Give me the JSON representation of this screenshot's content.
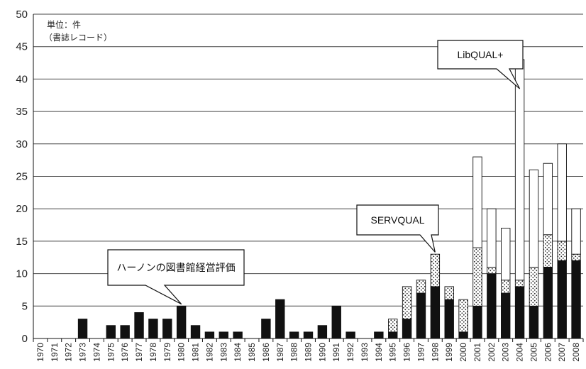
{
  "chart_data": {
    "type": "bar",
    "stacked": true,
    "title": "",
    "xlabel": "",
    "ylabel": "",
    "ylim": [
      0,
      50
    ],
    "yticks": [
      0,
      5,
      10,
      15,
      20,
      25,
      30,
      35,
      40,
      45,
      50
    ],
    "grid": true,
    "unit_label": [
      "単位：件",
      "（書誌レコード）"
    ],
    "categories": [
      "1970",
      "1971",
      "1972",
      "1973",
      "1974",
      "1975",
      "1976",
      "1977",
      "1978",
      "1979",
      "1980",
      "1981",
      "1982",
      "1983",
      "1984",
      "1985",
      "1986",
      "1987",
      "1988",
      "1989",
      "1990",
      "1991",
      "1992",
      "1993",
      "1994",
      "1995",
      "1996",
      "1997",
      "1998",
      "1999",
      "2000",
      "2001",
      "2002",
      "2003",
      "2004",
      "2005",
      "2006",
      "2007",
      "2008"
    ],
    "series": [
      {
        "pattern": "solid",
        "color": "#111111",
        "values": [
          0,
          0,
          0,
          3,
          0,
          2,
          2,
          4,
          3,
          3,
          5,
          2,
          1,
          1,
          1,
          0,
          3,
          6,
          1,
          1,
          2,
          5,
          1,
          0,
          1,
          1,
          3,
          7,
          8,
          6,
          1,
          5,
          10,
          7,
          8,
          5,
          11,
          12,
          12
        ]
      },
      {
        "pattern": "dotted",
        "color": "#ffffff",
        "values": [
          0,
          0,
          0,
          0,
          0,
          0,
          0,
          0,
          0,
          0,
          0,
          0,
          0,
          0,
          0,
          0,
          0,
          0,
          0,
          0,
          0,
          0,
          0,
          0,
          0,
          2,
          5,
          2,
          5,
          2,
          5,
          9,
          1,
          2,
          1,
          6,
          5,
          3,
          1
        ]
      },
      {
        "pattern": "white",
        "color": "#ffffff",
        "values": [
          0,
          0,
          0,
          0,
          0,
          0,
          0,
          0,
          0,
          0,
          0,
          0,
          0,
          0,
          0,
          0,
          0,
          0,
          0,
          0,
          0,
          0,
          0,
          0,
          0,
          0,
          0,
          0,
          0,
          0,
          0,
          14,
          9,
          8,
          34,
          15,
          11,
          15,
          7
        ]
      }
    ],
    "annotations": [
      {
        "text": "ハーノンの図書館経営評価",
        "target": "1980"
      },
      {
        "text": "SERVQUAL",
        "target": "1998"
      },
      {
        "text": "LibQUAL+",
        "target": "2004"
      }
    ]
  }
}
